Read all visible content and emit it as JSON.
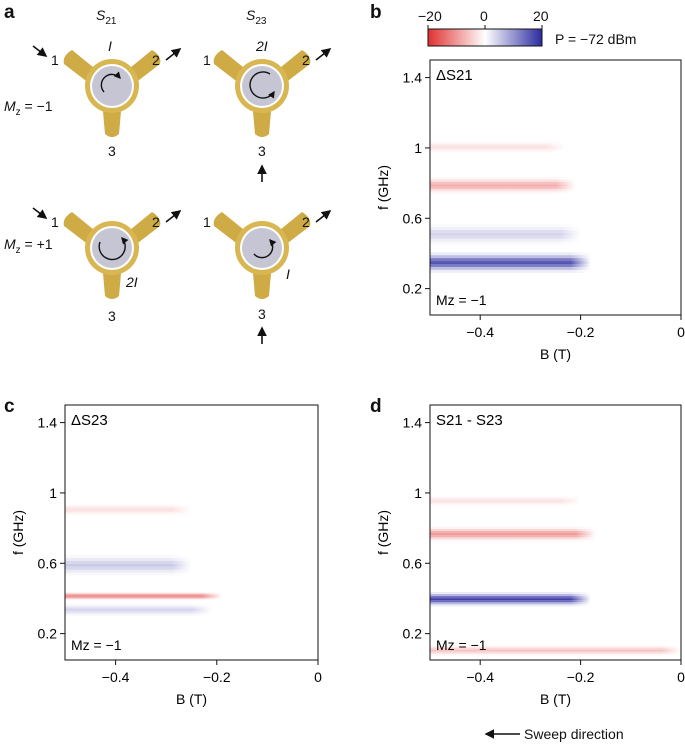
{
  "figure": {
    "panel_letters": [
      "a",
      "b",
      "c",
      "d"
    ],
    "sweep_direction_label": "Sweep direction",
    "colorbar": {
      "ticks": [
        "−20",
        "0",
        "20"
      ],
      "power_label": "P = −72 dBm",
      "neg_color": "#e03030",
      "mid_color": "#ffffff",
      "pos_color": "#2b2aa0"
    },
    "schematic": {
      "col_s21": "S21",
      "col_s23": "S23",
      "mz_minus": "Mz = −1",
      "mz_plus": "Mz = +1",
      "port_labels": [
        "1",
        "2",
        "3"
      ],
      "direction_labels": {
        "top_left": "I",
        "top_right": "2I",
        "bottom_left": "2I",
        "bottom_right": "I"
      },
      "arm_color": "#c9a230",
      "disk_color": "#c5c5d4"
    },
    "axes": {
      "xlabel": "B (T)",
      "ylabel": "f (GHz)",
      "xticks": [
        "−0.4",
        "−0.2",
        "0"
      ],
      "yticks": [
        "1.4",
        "1",
        "0.6",
        "0.2"
      ],
      "mz_label": "Mz = −1"
    }
  },
  "chart_data": [
    {
      "type": "heatmap",
      "panel": "b",
      "title": "ΔS21",
      "xlabel": "B (T)",
      "ylabel": "f (GHz)",
      "xlim": [
        -0.5,
        0.0
      ],
      "ylim": [
        0.05,
        1.5
      ],
      "color_range": [
        -20,
        20
      ],
      "bands": [
        {
          "f": 0.34,
          "width": 0.1,
          "value": 16,
          "b_end": -0.18
        },
        {
          "f": 0.5,
          "width": 0.1,
          "value": 4,
          "b_end": -0.2
        },
        {
          "f": 0.78,
          "width": 0.08,
          "value": -8,
          "b_end": -0.21
        },
        {
          "f": 1.0,
          "width": 0.06,
          "value": -3,
          "b_end": -0.23
        }
      ]
    },
    {
      "type": "heatmap",
      "panel": "c",
      "title": "ΔS23",
      "xlabel": "B (T)",
      "ylabel": "f (GHz)",
      "xlim": [
        -0.5,
        0.0
      ],
      "ylim": [
        0.05,
        1.5
      ],
      "color_range": [
        -20,
        20
      ],
      "bands": [
        {
          "f": 0.33,
          "width": 0.06,
          "value": 4,
          "b_end": -0.21
        },
        {
          "f": 0.41,
          "width": 0.04,
          "value": -12,
          "b_end": -0.19
        },
        {
          "f": 0.58,
          "width": 0.1,
          "value": 5,
          "b_end": -0.25
        },
        {
          "f": 0.9,
          "width": 0.06,
          "value": -3,
          "b_end": -0.25
        }
      ]
    },
    {
      "type": "heatmap",
      "panel": "d",
      "title": "S21 - S23",
      "xlabel": "B (T)",
      "ylabel": "f (GHz)",
      "xlim": [
        -0.5,
        0.0
      ],
      "ylim": [
        0.05,
        1.5
      ],
      "color_range": [
        -20,
        20
      ],
      "bands": [
        {
          "f": 0.39,
          "width": 0.07,
          "value": 18,
          "b_end": -0.18
        },
        {
          "f": 0.76,
          "width": 0.07,
          "value": -10,
          "b_end": -0.17
        },
        {
          "f": 0.1,
          "width": 0.05,
          "value": -6,
          "b_end": 0.0
        },
        {
          "f": 0.95,
          "width": 0.05,
          "value": -3,
          "b_end": -0.2
        }
      ]
    }
  ]
}
